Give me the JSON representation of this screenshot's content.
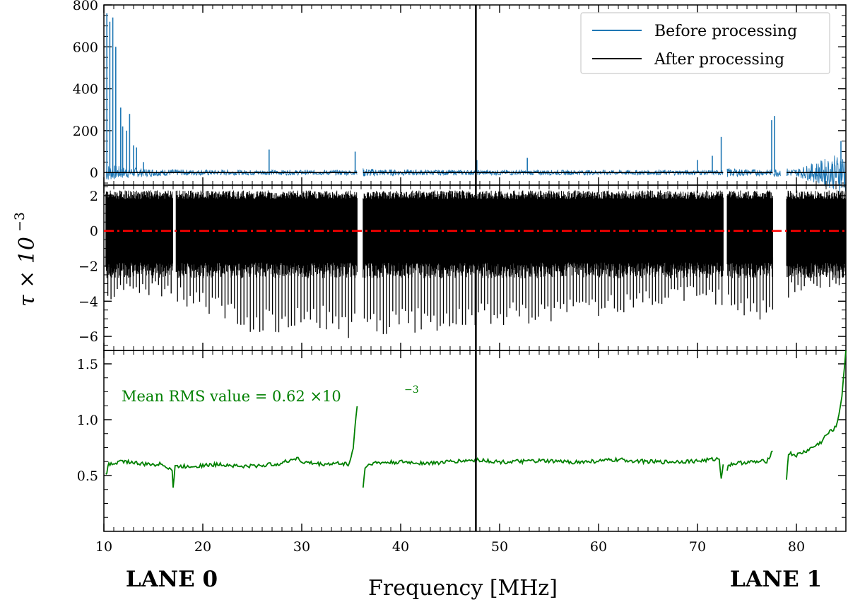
{
  "colors": {
    "before": "#1f77b4",
    "after": "#000000",
    "zero_line": "#ff0000",
    "rms": "#008000",
    "marker": "#000000"
  },
  "chart_data": [
    {
      "type": "line",
      "panel": "top",
      "ylim": [
        -60,
        800
      ],
      "xlim": [
        10,
        85
      ],
      "yticks": [
        0,
        200,
        400,
        600,
        800
      ],
      "ytick_labels": [
        "0",
        "200",
        "400",
        "600",
        "800"
      ],
      "legend_position": "top-right",
      "series": [
        {
          "name": "Before processing",
          "color": "#1f77b4",
          "segments": [
            [
              10.2,
              35.6
            ],
            [
              36.2,
              72.6
            ],
            [
              73.0,
              77.6
            ],
            [
              77.7,
              78.4
            ],
            [
              79.0,
              85.0
            ]
          ],
          "spikes": [
            [
              10.3,
              760
            ],
            [
              10.6,
              720
            ],
            [
              10.9,
              740
            ],
            [
              11.2,
              600
            ],
            [
              11.7,
              310
            ],
            [
              11.9,
              220
            ],
            [
              12.3,
              200
            ],
            [
              12.6,
              280
            ],
            [
              13.0,
              130
            ],
            [
              13.3,
              120
            ],
            [
              14.0,
              50
            ],
            [
              26.7,
              110
            ],
            [
              35.4,
              100
            ],
            [
              47.7,
              60
            ],
            [
              52.8,
              70
            ],
            [
              70.0,
              60
            ],
            [
              71.5,
              80
            ],
            [
              72.4,
              170
            ],
            [
              77.5,
              250
            ],
            [
              77.8,
              270
            ],
            [
              84.5,
              150
            ]
          ]
        },
        {
          "name": "After processing",
          "color": "#000000",
          "segments": [
            [
              10.2,
              35.6
            ],
            [
              36.2,
              72.6
            ],
            [
              73.0,
              77.6
            ],
            [
              79.0,
              85.0
            ]
          ],
          "values": 0
        }
      ]
    },
    {
      "type": "line",
      "panel": "middle",
      "ylim": [
        -6.8,
        2.6
      ],
      "xlim": [
        10,
        85
      ],
      "yticks": [
        -6,
        -4,
        -2,
        0,
        2
      ],
      "ytick_labels": [
        "−6",
        "−4",
        "−2",
        "0",
        "2"
      ],
      "series": [
        {
          "name": "tau",
          "color": "#000000",
          "segments": [
            [
              10.2,
              17.0
            ],
            [
              17.3,
              35.6
            ],
            [
              36.2,
              72.6
            ],
            [
              73.0,
              77.6
            ],
            [
              79.0,
              85.0
            ]
          ],
          "upper": 1.8,
          "lower": -1.8,
          "dips": [
            [
              12,
              -4.0
            ],
            [
              15,
              -3.8
            ],
            [
              20,
              -4.6
            ],
            [
              25,
              -5.8
            ],
            [
              28,
              -6.0
            ],
            [
              32,
              -5.6
            ],
            [
              34.5,
              -6.2
            ],
            [
              38,
              -6.0
            ],
            [
              42,
              -5.8
            ],
            [
              46,
              -5.5
            ],
            [
              52,
              -5.4
            ],
            [
              58,
              -5.0
            ],
            [
              64,
              -4.6
            ],
            [
              70,
              -3.8
            ],
            [
              74.5,
              -5.0
            ],
            [
              76.5,
              -5.2
            ],
            [
              80,
              -3.5
            ],
            [
              84,
              -3.2
            ]
          ]
        },
        {
          "name": "zero reference",
          "color": "#ff0000",
          "style": "dash-dot",
          "value": 0
        }
      ]
    },
    {
      "type": "line",
      "panel": "bottom",
      "ylim": [
        0.0,
        1.62
      ],
      "xlim": [
        10,
        85
      ],
      "yticks": [
        0.5,
        1.0,
        1.5
      ],
      "ytick_labels": [
        "0.5",
        "1.0",
        "1.5"
      ],
      "series": [
        {
          "name": "RMS",
          "color": "#008000",
          "x": [
            10.2,
            10.5,
            12,
            14,
            16,
            16.9,
            17.0,
            17.2,
            18,
            20,
            22,
            24,
            26,
            28,
            29.5,
            30,
            32,
            34,
            34.8,
            35.0,
            35.2,
            35.4,
            35.6
          ],
          "y": [
            0.5,
            0.6,
            0.63,
            0.6,
            0.6,
            0.55,
            0.39,
            0.58,
            0.58,
            0.59,
            0.6,
            0.58,
            0.59,
            0.61,
            0.66,
            0.62,
            0.6,
            0.61,
            0.6,
            0.67,
            0.75,
            0.95,
            1.12
          ]
        },
        {
          "name": "RMS seg2",
          "color": "#008000",
          "x": [
            36.2,
            36.4,
            37,
            40,
            43,
            46,
            48,
            50,
            54,
            58,
            62,
            66,
            70,
            72.2,
            72.4,
            72.6
          ],
          "y": [
            0.4,
            0.57,
            0.61,
            0.62,
            0.61,
            0.63,
            0.64,
            0.62,
            0.63,
            0.62,
            0.64,
            0.62,
            0.63,
            0.65,
            0.48,
            0.6
          ]
        },
        {
          "name": "RMS seg3",
          "color": "#008000",
          "x": [
            73.0,
            73.2,
            74,
            75,
            76,
            77,
            77.6
          ],
          "y": [
            0.55,
            0.6,
            0.61,
            0.62,
            0.62,
            0.63,
            0.72
          ]
        },
        {
          "name": "RMS seg4",
          "color": "#008000",
          "x": [
            79.0,
            79.2,
            80,
            81,
            82,
            82.5,
            83,
            83.5,
            84,
            84.3,
            84.6,
            85.0
          ],
          "y": [
            0.47,
            0.7,
            0.68,
            0.72,
            0.77,
            0.8,
            0.86,
            0.9,
            0.93,
            1.05,
            1.22,
            1.62
          ]
        }
      ]
    }
  ],
  "x_axis": {
    "xlim": [
      10,
      85
    ],
    "ticks": [
      10,
      20,
      30,
      40,
      50,
      60,
      70,
      80
    ],
    "tick_labels": [
      "10",
      "20",
      "30",
      "40",
      "50",
      "60",
      "70",
      "80"
    ],
    "label": "Frequency [MHz]"
  },
  "y_axis_label": "τ × 10",
  "y_axis_exponent": "−3",
  "vline_x": 47.6,
  "legend": {
    "before": "Before processing",
    "after": "After processing"
  },
  "annotation": {
    "text": "Mean RMS value =  0.62 ×10",
    "exponent": "−3"
  },
  "lane_labels": {
    "left": "LANE 0",
    "right": "LANE 1"
  }
}
